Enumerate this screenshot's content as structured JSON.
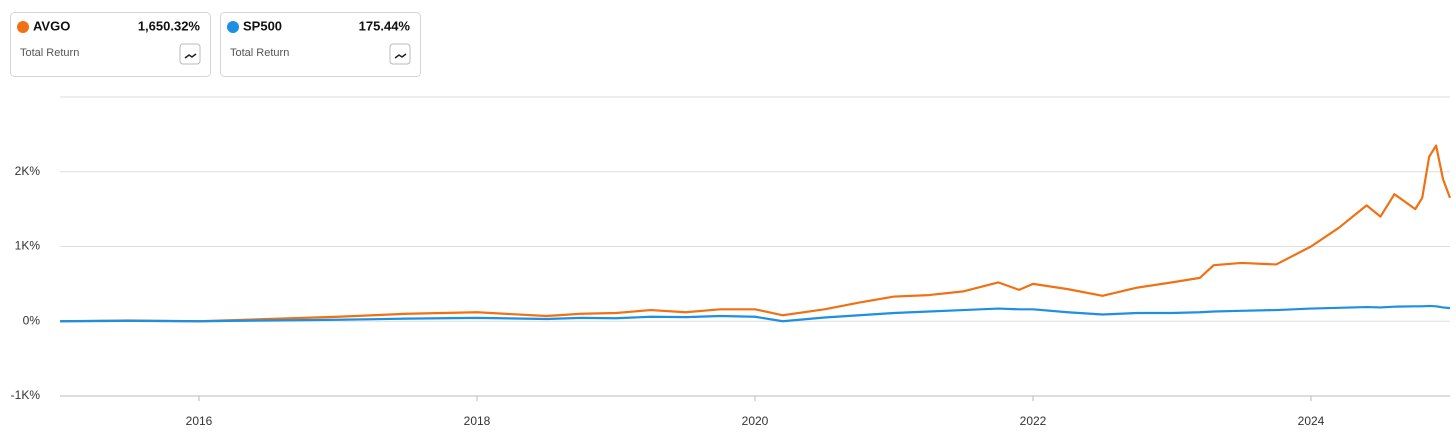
{
  "chart_data": {
    "type": "line",
    "x": [
      2015,
      2015.5,
      2016,
      2016.5,
      2017,
      2017.5,
      2018,
      2018.5,
      2018.75,
      2019,
      2019.25,
      2019.5,
      2019.75,
      2020,
      2020.2,
      2020.5,
      2020.75,
      2021,
      2021.25,
      2021.5,
      2021.75,
      2021.9,
      2022,
      2022.25,
      2022.5,
      2022.75,
      2023,
      2023.2,
      2023.3,
      2023.5,
      2023.75,
      2024,
      2024.2,
      2024.4,
      2024.5,
      2024.6,
      2024.75,
      2024.8,
      2024.85,
      2024.9,
      2024.95,
      2025
    ],
    "series": [
      {
        "name": "AVGO",
        "color": "#f07113",
        "summary": "1,650.32%",
        "summary_label": "Total Return",
        "values": [
          0,
          10,
          0,
          30,
          60,
          100,
          120,
          70,
          100,
          110,
          150,
          120,
          160,
          160,
          80,
          160,
          250,
          330,
          350,
          400,
          520,
          420,
          500,
          430,
          340,
          450,
          520,
          580,
          750,
          780,
          760,
          1000,
          1250,
          1550,
          1400,
          1700,
          1500,
          1650,
          2200,
          2350,
          1900,
          1650.32
        ]
      },
      {
        "name": "SP500",
        "color": "#1e8fe1",
        "summary": "175.44%",
        "summary_label": "Total Return",
        "values": [
          0,
          5,
          0,
          10,
          20,
          35,
          45,
          30,
          45,
          40,
          60,
          55,
          70,
          60,
          0,
          50,
          80,
          110,
          130,
          150,
          170,
          160,
          160,
          120,
          90,
          110,
          110,
          120,
          130,
          140,
          150,
          170,
          180,
          190,
          185,
          195,
          200,
          200,
          205,
          200,
          185,
          175.44
        ]
      }
    ],
    "xlim": [
      2015,
      2025
    ],
    "xticks": [
      2016,
      2018,
      2020,
      2022,
      2024
    ],
    "ylim": [
      -1000,
      3000
    ],
    "yticks": [
      {
        "value": -1000,
        "label": "-1K%"
      },
      {
        "value": 0,
        "label": "0%"
      },
      {
        "value": 1000,
        "label": "1K%"
      },
      {
        "value": 2000,
        "label": "2K%"
      }
    ],
    "grid": true
  }
}
